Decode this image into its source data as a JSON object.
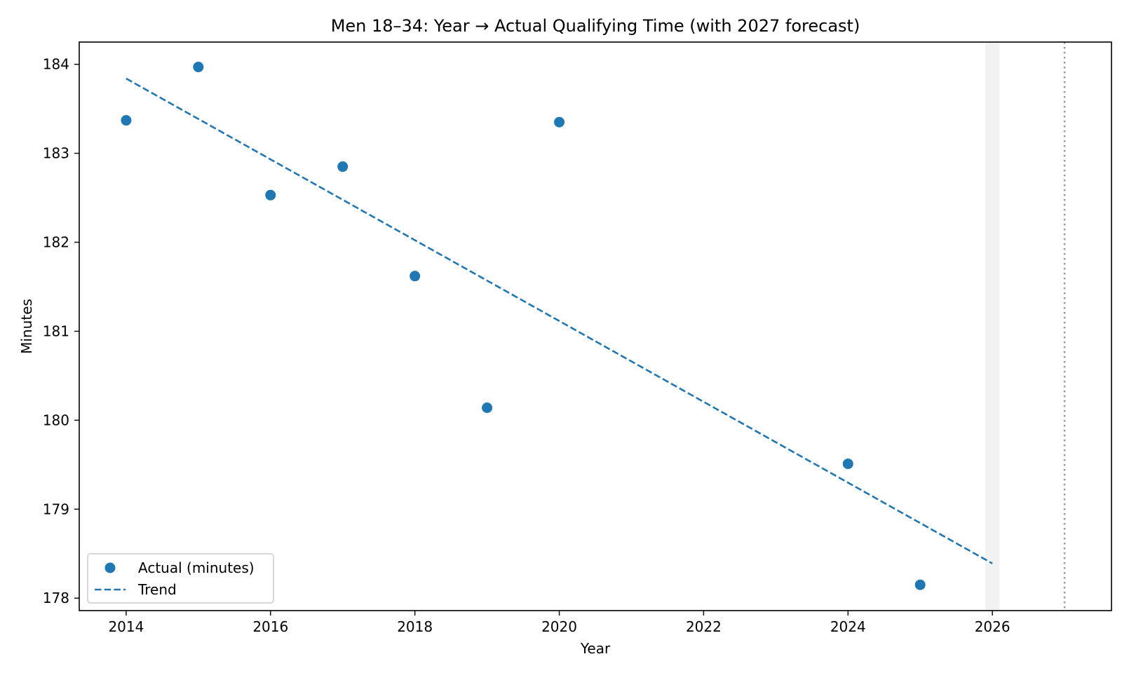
{
  "chart_data": {
    "type": "scatter",
    "title": "Men 18–34: Year → Actual Qualifying Time (with 2027 forecast)",
    "xlabel": "Year",
    "ylabel": "Minutes",
    "xlim": [
      2013.35,
      2027.65
    ],
    "ylim": [
      177.86,
      184.25
    ],
    "xticks": [
      "2014",
      "2016",
      "2018",
      "2020",
      "2022",
      "2024",
      "2026"
    ],
    "yticks": [
      "178",
      "179",
      "180",
      "181",
      "182",
      "183",
      "184"
    ],
    "grid": false,
    "legend_position": "lower-left",
    "series": [
      {
        "name": "Actual (minutes)",
        "kind": "scatter",
        "color": "#1f77b4",
        "points": [
          {
            "x": 2014,
            "y": 183.37
          },
          {
            "x": 2015,
            "y": 183.97
          },
          {
            "x": 2016,
            "y": 182.53
          },
          {
            "x": 2017,
            "y": 182.85
          },
          {
            "x": 2018,
            "y": 181.62
          },
          {
            "x": 2019,
            "y": 180.14
          },
          {
            "x": 2020,
            "y": 183.35
          },
          {
            "x": 2024,
            "y": 179.51
          },
          {
            "x": 2025,
            "y": 178.15
          }
        ]
      },
      {
        "name": "Trend",
        "kind": "line",
        "style": "dashed",
        "color": "#1f77b4",
        "points": [
          {
            "x": 2014,
            "y": 183.84
          },
          {
            "x": 2026,
            "y": 178.39
          }
        ]
      }
    ],
    "annotations": {
      "shaded_band": {
        "x_start": 2025.9,
        "x_end": 2026.1,
        "color": "#f2f2f2"
      },
      "forecast_line": {
        "x": 2027,
        "style": "dotted",
        "color": "#999999"
      }
    }
  }
}
